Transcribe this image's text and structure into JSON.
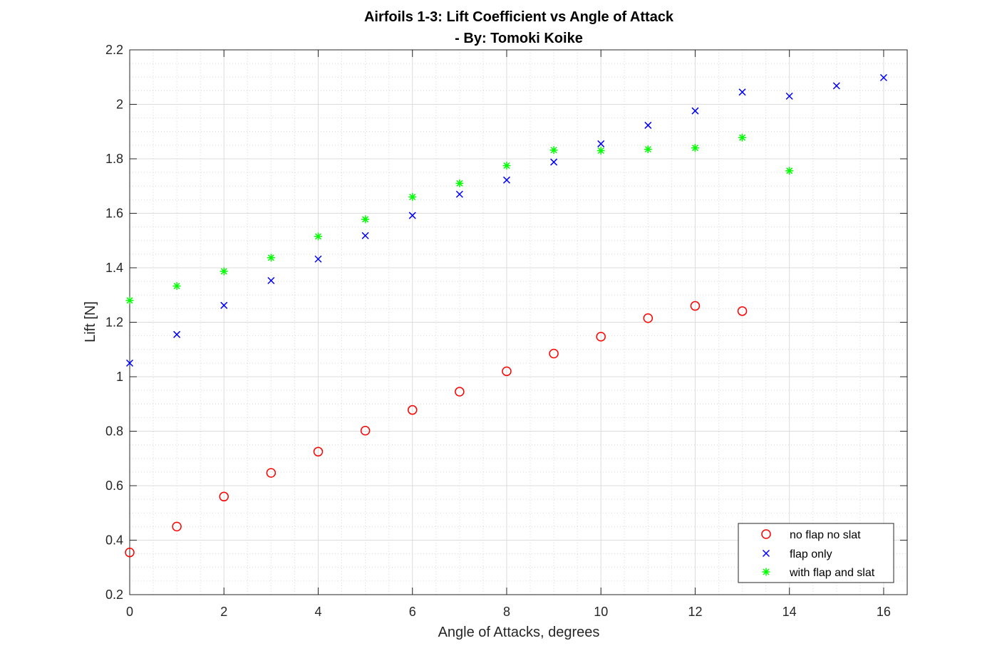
{
  "chart_data": {
    "type": "scatter",
    "title": [
      "Airfoils 1-3: Lift Coefficient vs Angle of Attack",
      "- By: Tomoki Koike"
    ],
    "xlabel": "Angle of Attacks, degrees",
    "ylabel": "Lift [N]",
    "xlim": [
      0,
      16.5
    ],
    "ylim": [
      0.2,
      2.2
    ],
    "xticks": [
      0,
      2,
      4,
      6,
      8,
      10,
      12,
      14,
      16
    ],
    "xtick_labels": [
      "0",
      "2",
      "4",
      "6",
      "8",
      "10",
      "12",
      "14",
      "16"
    ],
    "yticks": [
      0.2,
      0.4,
      0.6,
      0.8,
      1.0,
      1.2,
      1.4,
      1.6,
      1.8,
      2.0,
      2.2
    ],
    "ytick_labels": [
      "0.2",
      "0.4",
      "0.6",
      "0.8",
      "1",
      "1.2",
      "1.4",
      "1.6",
      "1.8",
      "2",
      "2.2"
    ],
    "grid": true,
    "minor_grid": true,
    "legend_position": "bottom-right",
    "series": [
      {
        "name": "no flap no slat",
        "marker": "circle",
        "color": "#ff0000",
        "x": [
          0,
          1,
          2,
          3,
          4,
          5,
          6,
          7,
          8,
          9,
          10,
          11,
          12,
          13
        ],
        "y": [
          0.355,
          0.45,
          0.56,
          0.647,
          0.725,
          0.802,
          0.878,
          0.945,
          1.02,
          1.085,
          1.147,
          1.215,
          1.26,
          1.241
        ]
      },
      {
        "name": "flap only",
        "marker": "x",
        "color": "#0000ff",
        "x": [
          0,
          1,
          2,
          3,
          4,
          5,
          6,
          7,
          8,
          9,
          10,
          11,
          12,
          13,
          14,
          15,
          16
        ],
        "y": [
          1.05,
          1.155,
          1.262,
          1.353,
          1.432,
          1.518,
          1.592,
          1.67,
          1.722,
          1.788,
          1.855,
          1.923,
          1.976,
          2.045,
          2.03,
          2.068,
          2.098
        ]
      },
      {
        "name": "with flap and slat",
        "marker": "asterisk",
        "color": "#00ff00",
        "x": [
          0,
          1,
          2,
          3,
          4,
          5,
          6,
          7,
          8,
          9,
          10,
          11,
          12,
          13,
          14
        ],
        "y": [
          1.28,
          1.333,
          1.387,
          1.437,
          1.515,
          1.578,
          1.66,
          1.71,
          1.775,
          1.832,
          1.83,
          1.835,
          1.84,
          1.878,
          1.756
        ]
      }
    ]
  }
}
